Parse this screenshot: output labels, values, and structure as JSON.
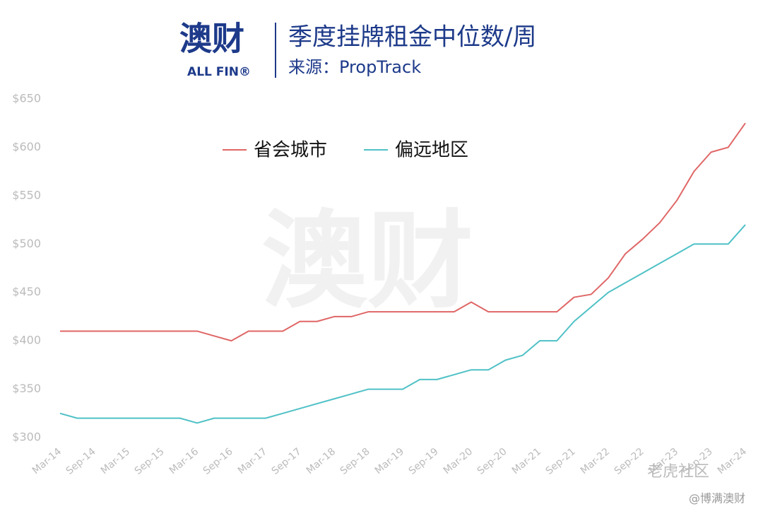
{
  "logo": {
    "cn": "澳财",
    "en": "ALL FIN®"
  },
  "watermarks": [
    "老虎社区",
    "@博满澳财"
  ],
  "chart_data": {
    "type": "line",
    "title": "季度挂牌租金中位数/周",
    "subtitle": "来源：PropTrack",
    "categories": [
      "Mar-14",
      null,
      "Sep-14",
      null,
      "Mar-15",
      null,
      "Sep-15",
      null,
      "Mar-16",
      null,
      "Sep-16",
      null,
      "Mar-17",
      null,
      "Sep-17",
      null,
      "Mar-18",
      null,
      "Sep-18",
      null,
      "Mar-19",
      null,
      "Sep-19",
      null,
      "Mar-20",
      null,
      "Sep-20",
      null,
      "Mar-21",
      null,
      "Sep-21",
      null,
      "Mar-22",
      null,
      "Sep-22",
      null,
      "Mar-23",
      null,
      "Sep-23",
      null,
      "Mar-24"
    ],
    "series": [
      {
        "name": "省会城市",
        "color": "#e06666",
        "values": [
          410,
          410,
          410,
          410,
          410,
          410,
          410,
          410,
          410,
          405,
          400,
          410,
          410,
          410,
          420,
          420,
          425,
          425,
          430,
          430,
          430,
          430,
          430,
          430,
          440,
          430,
          430,
          430,
          430,
          430,
          445,
          448,
          465,
          490,
          505,
          522,
          545,
          575,
          595,
          600,
          625
        ]
      },
      {
        "name": "偏远地区",
        "color": "#4fc1c6",
        "values": [
          325,
          320,
          320,
          320,
          320,
          320,
          320,
          320,
          315,
          320,
          320,
          320,
          320,
          325,
          330,
          335,
          340,
          345,
          350,
          350,
          350,
          360,
          360,
          365,
          370,
          370,
          380,
          385,
          400,
          400,
          420,
          435,
          450,
          460,
          470,
          480,
          490,
          500,
          500,
          500,
          520
        ]
      }
    ],
    "ylim": [
      300,
      650
    ],
    "yticks": [
      {
        "value": 300,
        "label": "$300"
      },
      {
        "value": 350,
        "label": "$350"
      },
      {
        "value": 400,
        "label": "$400"
      },
      {
        "value": 450,
        "label": "$450"
      },
      {
        "value": 500,
        "label": "$500"
      },
      {
        "value": 550,
        "label": "$550"
      },
      {
        "value": 600,
        "label": "$600"
      },
      {
        "value": 650,
        "label": "$650"
      }
    ],
    "legend": "top"
  }
}
